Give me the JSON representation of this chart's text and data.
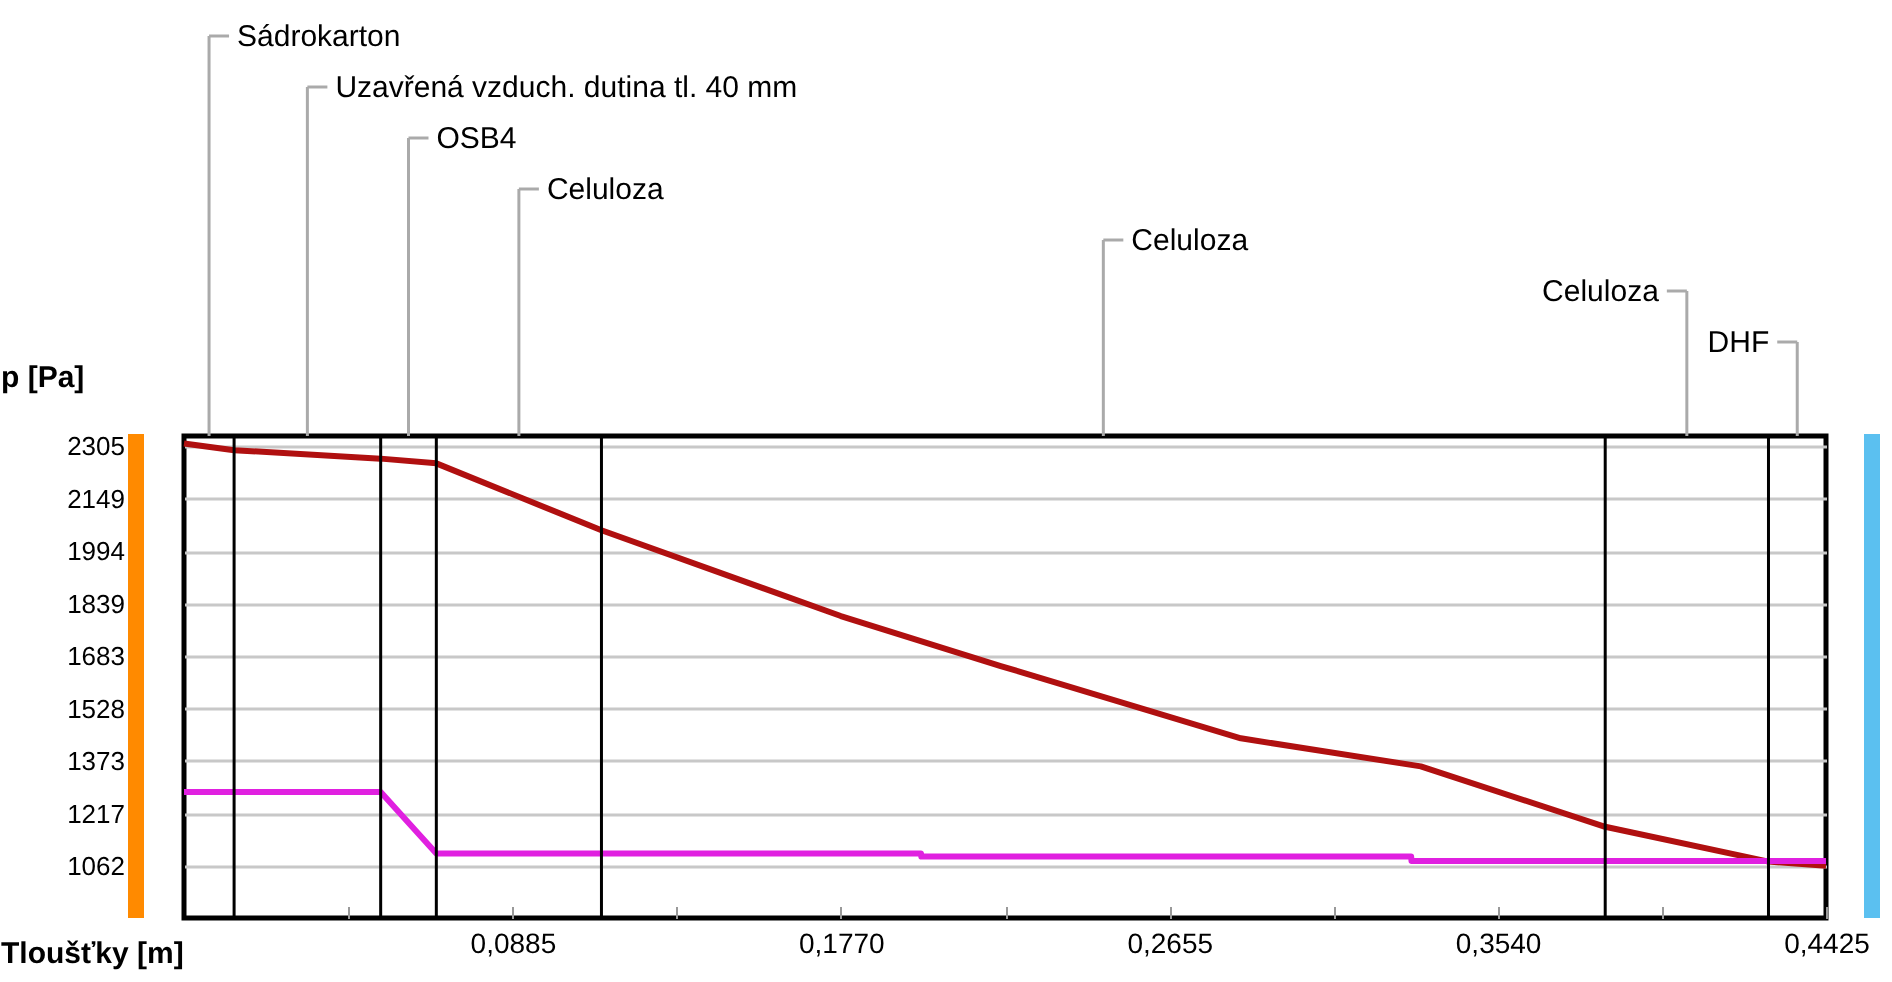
{
  "chart_data": {
    "type": "line",
    "xlabel": "Tloušťky [m]",
    "ylabel": "p [Pa]",
    "xlim": [
      0,
      0.4425
    ],
    "ylim": [
      908,
      2335
    ],
    "xticks": [
      {
        "value": 0.04425,
        "label": null
      },
      {
        "value": 0.0885,
        "label": "0,0885"
      },
      {
        "value": 0.13275,
        "label": null
      },
      {
        "value": 0.177,
        "label": "0,1770"
      },
      {
        "value": 0.22125,
        "label": null
      },
      {
        "value": 0.2655,
        "label": "0,2655"
      },
      {
        "value": 0.30975,
        "label": null
      },
      {
        "value": 0.354,
        "label": "0,3540"
      },
      {
        "value": 0.39825,
        "label": null
      },
      {
        "value": 0.4425,
        "label": "0,4425"
      }
    ],
    "yticks": [
      1062,
      1217,
      1373,
      1528,
      1683,
      1839,
      1994,
      2149,
      2305
    ],
    "grid": "y",
    "marker": "none",
    "line_style": "solid",
    "series": [
      {
        "color": "#b01010",
        "x": [
          0,
          0.0135,
          0.053,
          0.068,
          0.1125,
          0.177,
          0.2201,
          0.2848,
          0.3333,
          0.383,
          0.427,
          0.4425
        ],
        "values": [
          2313,
          2293,
          2268,
          2254,
          2056,
          1802,
          1654,
          1440,
          1357,
          1178,
          1075,
          1063
        ]
      },
      {
        "color": "#e020e0",
        "x": [
          0,
          0.053,
          0.068,
          0.1986,
          0.1987,
          0.3307,
          0.3308,
          0.4425
        ],
        "values": [
          1281,
          1281,
          1099,
          1099,
          1090,
          1090,
          1077,
          1077
        ]
      }
    ],
    "ref_lines": [
      {
        "axis": "x",
        "value": 0.0135,
        "color": "#000000"
      },
      {
        "axis": "x",
        "value": 0.053,
        "color": "#000000"
      },
      {
        "axis": "x",
        "value": 0.068,
        "color": "#000000"
      },
      {
        "axis": "x",
        "value": 0.1125,
        "color": "#000000"
      },
      {
        "axis": "x",
        "value": 0.383,
        "color": "#000000"
      },
      {
        "axis": "x",
        "value": 0.427,
        "color": "#000000"
      }
    ],
    "annotations": [
      "Sádrokarton",
      "Uzavřená vzduch. dutina tl. 40 mm",
      "OSB4",
      "Celuloza",
      "Celuloza",
      "Celuloza",
      "DHF"
    ]
  }
}
